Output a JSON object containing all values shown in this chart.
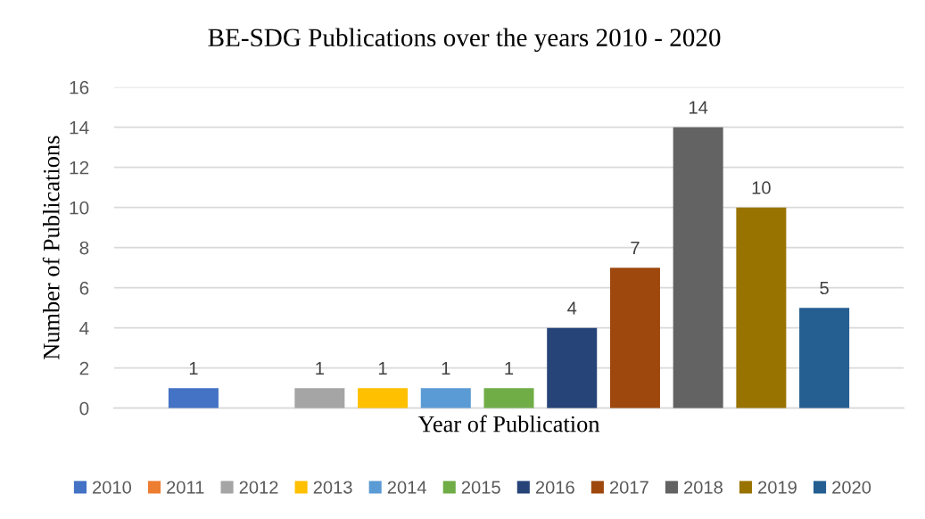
{
  "chart_data": {
    "type": "bar",
    "title": "BE-SDG Publications over the years 2010 - 2020",
    "xlabel": "Year of Publication",
    "ylabel": "Number of Publications",
    "categories": [
      null
    ],
    "series": [
      {
        "name": "2010",
        "color": "#4472c4",
        "values": [
          1
        ]
      },
      {
        "name": "2011",
        "color": "#ed7d31",
        "values": [
          null
        ]
      },
      {
        "name": "2012",
        "color": "#a5a5a5",
        "values": [
          1
        ]
      },
      {
        "name": "2013",
        "color": "#ffc000",
        "values": [
          1
        ]
      },
      {
        "name": "2014",
        "color": "#5b9bd5",
        "values": [
          1
        ]
      },
      {
        "name": "2015",
        "color": "#70ad47",
        "values": [
          1
        ]
      },
      {
        "name": "2016",
        "color": "#264478",
        "values": [
          4
        ]
      },
      {
        "name": "2017",
        "color": "#9e480e",
        "values": [
          7
        ]
      },
      {
        "name": "2018",
        "color": "#636363",
        "values": [
          14
        ]
      },
      {
        "name": "2019",
        "color": "#997300",
        "values": [
          10
        ]
      },
      {
        "name": "2020",
        "color": "#255e91",
        "values": [
          5
        ]
      }
    ],
    "ylim": [
      0,
      16
    ],
    "yticks": [
      0,
      2,
      4,
      6,
      8,
      10,
      12,
      14,
      16
    ],
    "grid": "y",
    "legend": "bottom",
    "data_labels": true
  }
}
